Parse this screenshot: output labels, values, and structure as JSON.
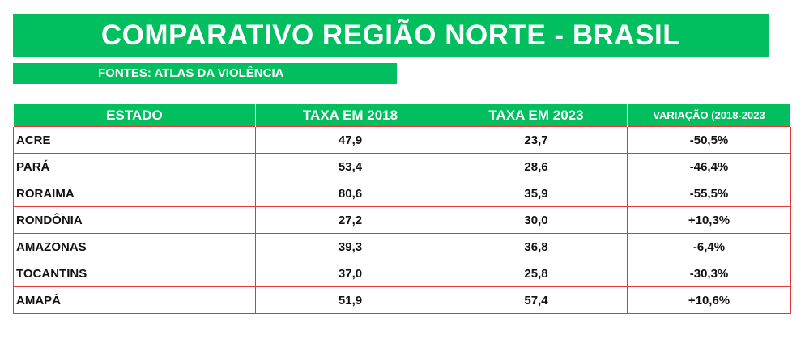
{
  "header": {
    "title": "COMPARATIVO REGIÃO NORTE - BRASIL",
    "source": "FONTES: ATLAS DA VIOLÊNCIA"
  },
  "table": {
    "columns": [
      "ESTADO",
      "TAXA EM 2018",
      "TAXA EM 2023",
      "VARIAÇÃO (2018-2023"
    ],
    "rows": [
      {
        "estado": "ACRE",
        "taxa_2018": "47,9",
        "taxa_2023": "23,7",
        "variacao": "-50,5%"
      },
      {
        "estado": "PARÁ",
        "taxa_2018": "53,4",
        "taxa_2023": "28,6",
        "variacao": "-46,4%"
      },
      {
        "estado": "RORAIMA",
        "taxa_2018": "80,6",
        "taxa_2023": "35,9",
        "variacao": "-55,5%"
      },
      {
        "estado": "RONDÔNIA",
        "taxa_2018": "27,2",
        "taxa_2023": "30,0",
        "variacao": "+10,3%"
      },
      {
        "estado": "AMAZONAS",
        "taxa_2018": "39,3",
        "taxa_2023": "36,8",
        "variacao": "-6,4%"
      },
      {
        "estado": "TOCANTINS",
        "taxa_2018": "37,0",
        "taxa_2023": "25,8",
        "variacao": "-30,3%"
      },
      {
        "estado": "AMAPÁ",
        "taxa_2018": "51,9",
        "taxa_2023": "57,4",
        "variacao": "+10,6%"
      }
    ]
  },
  "colors": {
    "header_green": "#01be5f",
    "border_red": "#e0373a"
  }
}
